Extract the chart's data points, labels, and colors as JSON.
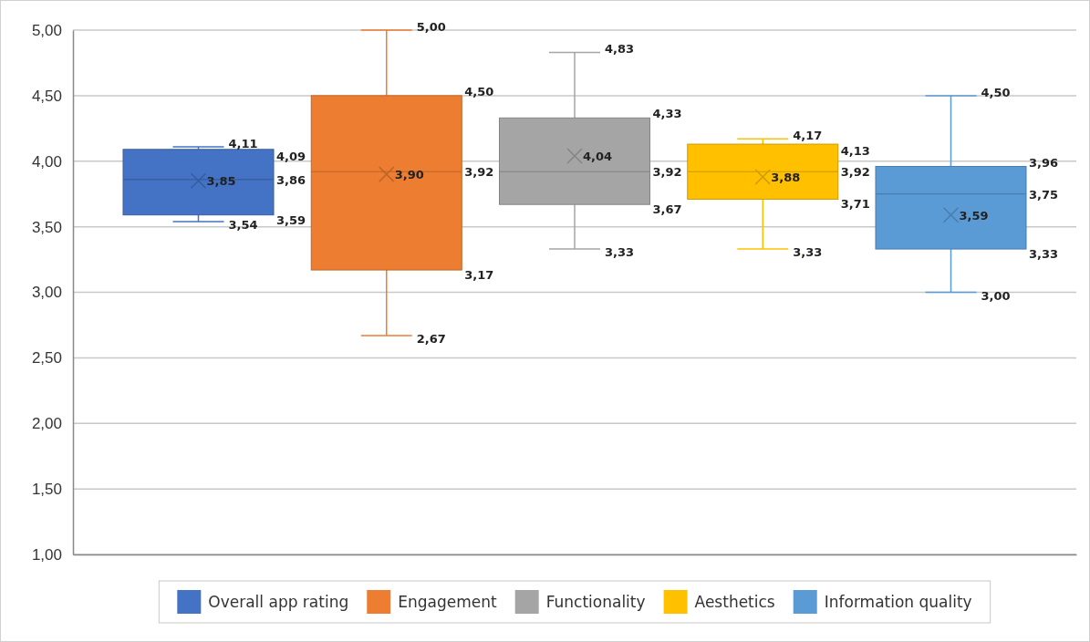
{
  "chart_data": {
    "type": "box",
    "categories": [
      null
    ],
    "ylim": [
      1,
      5
    ],
    "yticks": [
      {
        "value": 1,
        "label": "1,00"
      },
      {
        "value": 1.5,
        "label": "1,50"
      },
      {
        "value": 2,
        "label": "2,00"
      },
      {
        "value": 2.5,
        "label": "2,50"
      },
      {
        "value": 3,
        "label": "3,00"
      },
      {
        "value": 3.5,
        "label": "3,50"
      },
      {
        "value": 4,
        "label": "4,00"
      },
      {
        "value": 4.5,
        "label": "4,50"
      },
      {
        "value": 5,
        "label": "5,00"
      }
    ],
    "grid": "y",
    "legend": "bottom",
    "marker": "cross",
    "data_labels": true,
    "series": [
      {
        "name": "Overall app rating",
        "color": "#4472c4",
        "boxes": [
          {
            "low": 3.54,
            "q1": 3.59,
            "median": 3.86,
            "q3": 4.09,
            "high": 4.11,
            "mean": 3.85
          }
        ],
        "value_labels": [
          [
            "4,11",
            "4,09",
            "3,86",
            "3,59",
            "3,54",
            "3,85"
          ]
        ]
      },
      {
        "name": "Engagement",
        "color": "#ed7d31",
        "boxes": [
          {
            "low": 2.67,
            "q1": 3.17,
            "median": 3.92,
            "q3": 4.5,
            "high": 5.0,
            "mean": 3.9
          }
        ],
        "value_labels": [
          [
            "5,00",
            "4,50",
            "3,92",
            "3,17",
            "2,67",
            "3,90"
          ]
        ]
      },
      {
        "name": "Functionality",
        "color": "#a5a5a5",
        "boxes": [
          {
            "low": 3.33,
            "q1": 3.67,
            "median": 3.92,
            "q3": 4.33,
            "high": 4.83,
            "mean": 4.04
          }
        ],
        "value_labels": [
          [
            "4,83",
            "4,33",
            "3,92",
            "3,67",
            "3,33",
            "4,04"
          ]
        ]
      },
      {
        "name": "Aesthetics",
        "color": "#ffc000",
        "boxes": [
          {
            "low": 3.33,
            "q1": 3.71,
            "median": 3.92,
            "q3": 4.13,
            "high": 4.17,
            "mean": 3.88
          }
        ],
        "value_labels": [
          [
            "4,17",
            "4,13",
            "3,92",
            "3,71",
            "3,33",
            "3,88"
          ]
        ]
      },
      {
        "name": "Information quality",
        "color": "#5b9bd5",
        "boxes": [
          {
            "low": 3.0,
            "q1": 3.33,
            "median": 3.75,
            "q3": 3.96,
            "high": 4.5,
            "mean": 3.59
          }
        ],
        "value_labels": [
          [
            "4,50",
            "3,96",
            "3,75",
            "3,33",
            "3,00",
            "3,59"
          ]
        ]
      }
    ]
  }
}
